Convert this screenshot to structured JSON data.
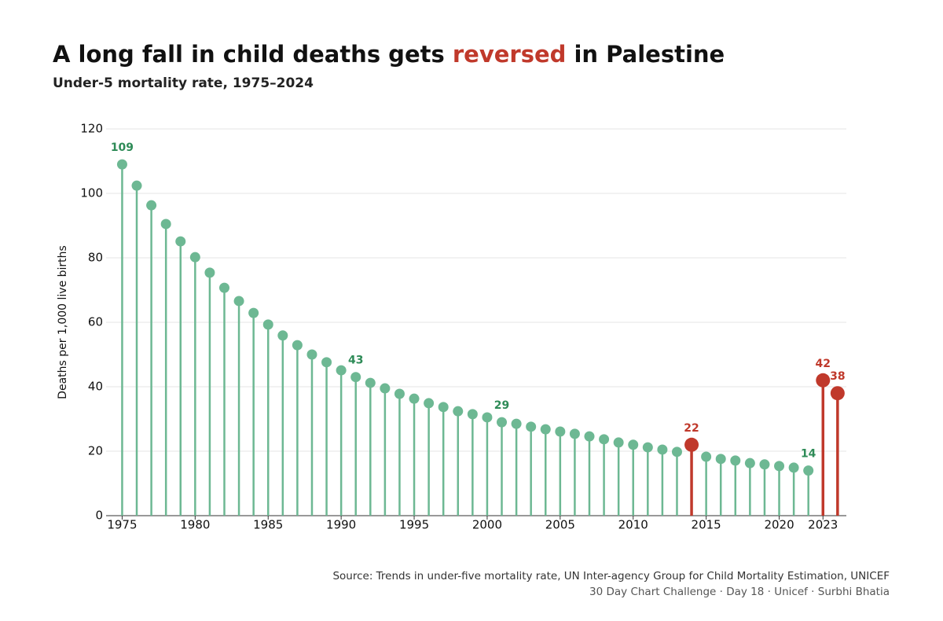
{
  "chart_data": {
    "type": "lollipop",
    "title": [
      "A long fall in child deaths gets ",
      "reversed",
      " in Palestine"
    ],
    "title_highlight_color": "#c0392b",
    "subtitle": "Under-5 mortality rate, 1975–2024",
    "y_label": "Deaths per 1,000 live births",
    "source": "Source: Trends in under-five mortality rate, UN Inter-agency Group for Child Mortality Estimation, UNICEF",
    "credit": "30 Day Chart Challenge · Day 18 · Unicef · Surbhi Bhatia",
    "x": [
      1975,
      1976,
      1977,
      1978,
      1979,
      1980,
      1981,
      1982,
      1983,
      1984,
      1985,
      1986,
      1987,
      1988,
      1989,
      1990,
      1991,
      1992,
      1993,
      1994,
      1995,
      1996,
      1997,
      1998,
      1999,
      2000,
      2001,
      2002,
      2003,
      2004,
      2005,
      2006,
      2007,
      2008,
      2009,
      2010,
      2011,
      2012,
      2013,
      2014,
      2015,
      2016,
      2017,
      2018,
      2019,
      2020,
      2021,
      2022,
      2023,
      2024
    ],
    "values": [
      109,
      102.4,
      96.3,
      90.5,
      85.1,
      80.2,
      75.4,
      70.7,
      66.6,
      62.9,
      59.3,
      55.9,
      52.9,
      50.0,
      47.6,
      45.1,
      43,
      41.2,
      39.5,
      37.8,
      36.3,
      34.9,
      33.7,
      32.4,
      31.5,
      30.5,
      29,
      28.5,
      27.6,
      26.8,
      26.1,
      25.4,
      24.6,
      23.7,
      22.7,
      22.0,
      21.2,
      20.5,
      19.8,
      22,
      18.3,
      17.6,
      17.1,
      16.3,
      15.9,
      15.4,
      14.9,
      14,
      42,
      38
    ],
    "value_labels": [
      "109",
      null,
      null,
      null,
      null,
      null,
      null,
      null,
      null,
      null,
      null,
      null,
      null,
      null,
      null,
      null,
      "43",
      null,
      null,
      null,
      null,
      null,
      null,
      null,
      null,
      null,
      "29",
      null,
      null,
      null,
      null,
      null,
      null,
      null,
      null,
      null,
      null,
      null,
      null,
      "22",
      null,
      null,
      null,
      null,
      null,
      null,
      null,
      "14",
      "42",
      "38"
    ],
    "color": "#6db893",
    "label_color": "#2e8b57",
    "colors": [
      "#6db893",
      "#6db893",
      "#6db893",
      "#6db893",
      "#6db893",
      "#6db893",
      "#6db893",
      "#6db893",
      "#6db893",
      "#6db893",
      "#6db893",
      "#6db893",
      "#6db893",
      "#6db893",
      "#6db893",
      "#6db893",
      "#6db893",
      "#6db893",
      "#6db893",
      "#6db893",
      "#6db893",
      "#6db893",
      "#6db893",
      "#6db893",
      "#6db893",
      "#6db893",
      "#6db893",
      "#6db893",
      "#6db893",
      "#6db893",
      "#6db893",
      "#6db893",
      "#6db893",
      "#6db893",
      "#6db893",
      "#6db893",
      "#6db893",
      "#6db893",
      "#6db893",
      "#c0392b",
      "#6db893",
      "#6db893",
      "#6db893",
      "#6db893",
      "#6db893",
      "#6db893",
      "#6db893",
      "#6db893",
      "#c0392b",
      "#c0392b"
    ],
    "xlim": [
      1973.9,
      2024.6
    ],
    "xticks": [
      1975,
      1980,
      1985,
      1990,
      1995,
      2000,
      2005,
      2010,
      2015,
      2020,
      2023
    ],
    "ylim": [
      0,
      120
    ],
    "yticks": [
      0,
      20,
      40,
      60,
      80,
      100,
      120
    ],
    "grid": true
  }
}
